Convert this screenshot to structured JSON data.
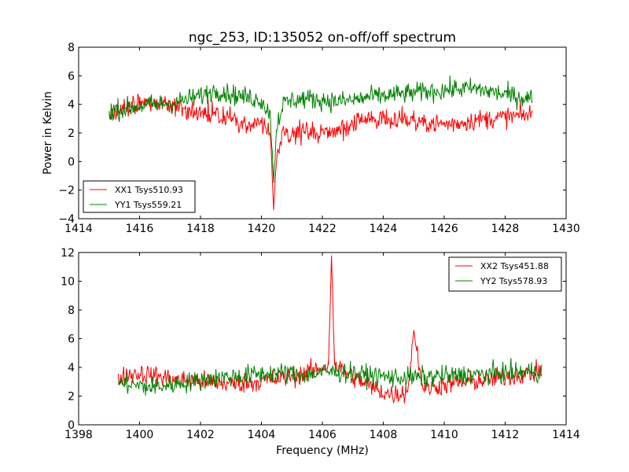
{
  "figure": {
    "title": "ngc_253, ID:135052 on-off/off spectrum",
    "ylabel": "Power in Kelvin",
    "xlabel": "Frequency (MHz)"
  },
  "colors": {
    "red": "#ff0000",
    "green": "#008000"
  },
  "chart_data": [
    {
      "type": "line",
      "xlim": [
        1414,
        1430
      ],
      "ylim": [
        -4,
        8
      ],
      "xticks": [
        1414,
        1416,
        1418,
        1420,
        1422,
        1424,
        1426,
        1428,
        1430
      ],
      "yticks": [
        -4,
        -2,
        0,
        2,
        4,
        6,
        8
      ],
      "legend": "lower-left",
      "grid": false,
      "series": [
        {
          "name": "XX1 Tsys510.93",
          "color": "#ff0000",
          "x": [
            1415.0,
            1415.5,
            1416.0,
            1416.5,
            1417.0,
            1417.5,
            1418.0,
            1418.5,
            1419.0,
            1419.5,
            1420.0,
            1420.3,
            1420.4,
            1420.5,
            1420.7,
            1421.0,
            1421.5,
            1422.0,
            1422.5,
            1423.0,
            1423.5,
            1424.0,
            1424.5,
            1425.0,
            1425.5,
            1426.0,
            1426.5,
            1427.0,
            1427.5,
            1428.0,
            1428.5,
            1428.9
          ],
          "y": [
            3.3,
            3.8,
            4.1,
            4.2,
            3.9,
            3.6,
            3.5,
            3.3,
            3.0,
            2.7,
            2.6,
            1.8,
            -3.4,
            0.5,
            1.8,
            2.0,
            2.1,
            1.9,
            2.2,
            2.6,
            2.9,
            3.1,
            3.0,
            2.9,
            2.7,
            2.6,
            2.7,
            2.9,
            3.0,
            3.1,
            3.2,
            3.3
          ]
        },
        {
          "name": "YY1 Tsys559.21",
          "color": "#008000",
          "x": [
            1415.0,
            1415.5,
            1416.0,
            1416.5,
            1417.0,
            1417.5,
            1418.0,
            1418.5,
            1419.0,
            1419.5,
            1420.0,
            1420.3,
            1420.4,
            1420.5,
            1420.7,
            1421.0,
            1421.5,
            1422.0,
            1422.5,
            1423.0,
            1423.5,
            1424.0,
            1424.5,
            1425.0,
            1425.5,
            1426.0,
            1426.5,
            1427.0,
            1427.5,
            1428.0,
            1428.5,
            1428.9
          ],
          "y": [
            3.6,
            3.7,
            3.9,
            4.0,
            4.1,
            4.3,
            4.6,
            5.0,
            4.7,
            4.5,
            4.3,
            3.2,
            -1.5,
            2.5,
            4.0,
            4.3,
            4.4,
            4.3,
            4.2,
            4.3,
            4.5,
            4.6,
            4.7,
            4.8,
            4.9,
            5.0,
            5.1,
            5.1,
            4.9,
            4.7,
            4.5,
            4.4
          ]
        }
      ]
    },
    {
      "type": "line",
      "xlim": [
        1398,
        1414
      ],
      "ylim": [
        0,
        12
      ],
      "xticks": [
        1398,
        1400,
        1402,
        1404,
        1406,
        1408,
        1410,
        1412,
        1414
      ],
      "yticks": [
        0,
        2,
        4,
        6,
        8,
        10,
        12
      ],
      "legend": "top-right",
      "grid": false,
      "series": [
        {
          "name": "XX2 Tsys451.88",
          "color": "#ff0000",
          "x": [
            1399.3,
            1399.8,
            1400.3,
            1400.8,
            1401.3,
            1401.8,
            1402.3,
            1402.8,
            1403.3,
            1403.8,
            1404.3,
            1404.8,
            1405.3,
            1405.8,
            1406.2,
            1406.3,
            1406.4,
            1406.8,
            1407.3,
            1407.8,
            1408.3,
            1408.8,
            1409.0,
            1409.3,
            1409.8,
            1410.3,
            1410.8,
            1411.3,
            1411.8,
            1412.3,
            1412.8,
            1413.2
          ],
          "y": [
            3.2,
            3.6,
            3.5,
            3.3,
            3.1,
            3.1,
            3.0,
            2.9,
            2.9,
            3.0,
            3.1,
            3.3,
            3.5,
            3.8,
            4.2,
            11.8,
            4.2,
            3.6,
            3.0,
            2.4,
            2.1,
            2.3,
            6.6,
            2.5,
            2.7,
            2.9,
            3.0,
            3.1,
            3.3,
            3.4,
            3.6,
            3.7
          ]
        },
        {
          "name": "YY2 Tsys578.93",
          "color": "#008000",
          "x": [
            1399.3,
            1399.8,
            1400.3,
            1400.8,
            1401.3,
            1401.8,
            1402.3,
            1402.8,
            1403.3,
            1403.8,
            1404.3,
            1404.8,
            1405.3,
            1405.8,
            1406.2,
            1406.3,
            1406.4,
            1406.8,
            1407.3,
            1407.8,
            1408.3,
            1408.8,
            1409.0,
            1409.3,
            1409.8,
            1410.3,
            1410.8,
            1411.3,
            1411.8,
            1412.3,
            1412.8,
            1413.2
          ],
          "y": [
            2.9,
            2.8,
            2.6,
            2.7,
            2.9,
            3.0,
            3.2,
            3.3,
            3.4,
            3.5,
            3.6,
            3.6,
            3.5,
            3.6,
            3.7,
            3.7,
            3.7,
            3.6,
            3.5,
            3.4,
            3.3,
            3.3,
            3.3,
            3.3,
            3.4,
            3.4,
            3.5,
            3.5,
            3.6,
            3.6,
            3.7,
            3.7
          ]
        }
      ]
    }
  ]
}
